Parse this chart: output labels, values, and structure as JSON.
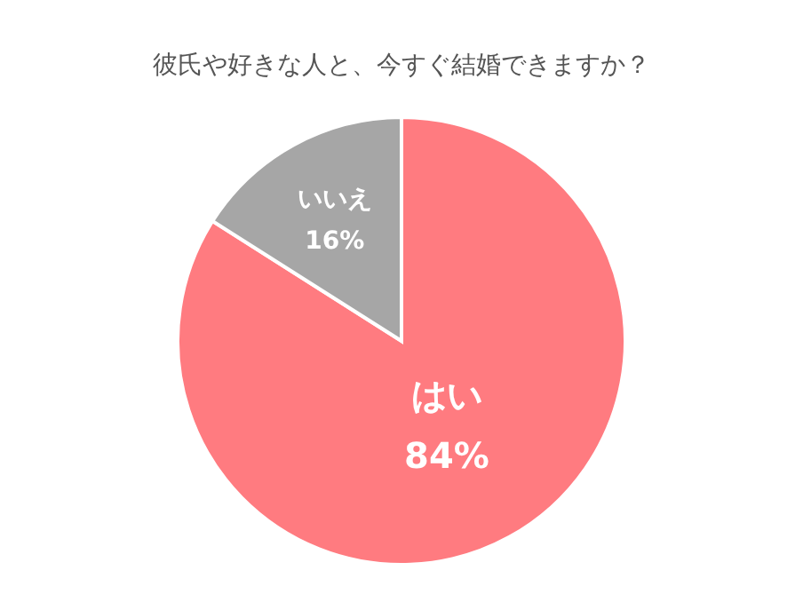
{
  "chart_data": {
    "type": "pie",
    "title": "彼氏や好きな人と、今すぐ結婚できますか？",
    "categories": [
      "はい",
      "いいえ"
    ],
    "values": [
      84,
      16
    ],
    "colors": [
      "#ff7b80",
      "#a6a6a6"
    ],
    "value_labels": [
      "84%",
      "16%"
    ],
    "legend": false
  }
}
